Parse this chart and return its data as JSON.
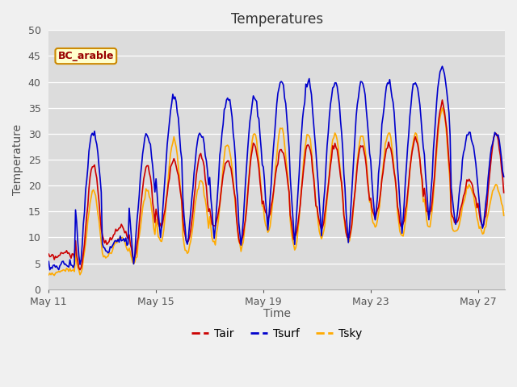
{
  "title": "Temperatures",
  "xlabel": "Time",
  "ylabel": "Temperature",
  "annotation_text": "BC_arable",
  "annotation_bg": "#ffffcc",
  "annotation_border": "#cc8800",
  "annotation_text_color": "#990000",
  "ylim": [
    0,
    50
  ],
  "yticks": [
    0,
    5,
    10,
    15,
    20,
    25,
    30,
    35,
    40,
    45,
    50
  ],
  "plot_bg_color": "#dcdcdc",
  "fig_bg_color": "#f0f0f0",
  "line_tair_color": "#cc0000",
  "line_tsurf_color": "#0000cc",
  "line_tsky_color": "#ffaa00",
  "line_width": 1.2,
  "legend_labels": [
    "Tair",
    "Tsurf",
    "Tsky"
  ],
  "xtick_positions": [
    0,
    4,
    8,
    12,
    16
  ],
  "xtick_labels": [
    "May 11",
    "May 15",
    "May 19",
    "May 23",
    "May 27"
  ],
  "xlim": [
    0,
    17
  ],
  "n_days": 17,
  "pts_per_day": 24,
  "title_fontsize": 12,
  "tick_fontsize": 9,
  "label_fontsize": 10,
  "tair_mins": [
    6,
    4,
    9,
    6,
    12,
    9,
    12,
    9,
    14,
    10,
    12,
    10,
    14,
    12,
    14,
    13,
    12
  ],
  "tair_maxs": [
    7,
    24,
    12,
    24,
    25,
    26,
    25,
    28,
    27,
    28,
    28,
    28,
    28,
    29,
    36,
    21,
    30
  ],
  "tsurf_mins": [
    4,
    4,
    7,
    5,
    10,
    8,
    10,
    8,
    12,
    9,
    11,
    9,
    13,
    11,
    13,
    12,
    11
  ],
  "tsurf_maxs": [
    5,
    30,
    10,
    30,
    37,
    30,
    37,
    37,
    40,
    40,
    40,
    40,
    40,
    40,
    43,
    30,
    30
  ],
  "tsky_mins": [
    3,
    3,
    6,
    5,
    9,
    7,
    9,
    8,
    11,
    8,
    10,
    9,
    12,
    10,
    12,
    11,
    11
  ],
  "tsky_maxs": [
    4,
    19,
    10,
    19,
    29,
    21,
    28,
    30,
    31,
    30,
    30,
    30,
    30,
    30,
    35,
    20,
    20
  ]
}
